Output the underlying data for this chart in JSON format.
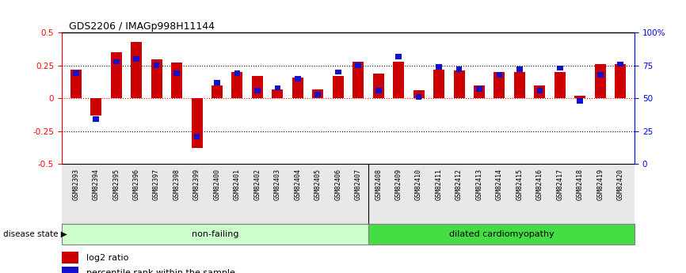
{
  "title": "GDS2206 / IMAGp998H11144",
  "samples": [
    "GSM82393",
    "GSM82394",
    "GSM82395",
    "GSM82396",
    "GSM82397",
    "GSM82398",
    "GSM82399",
    "GSM82400",
    "GSM82401",
    "GSM82402",
    "GSM82403",
    "GSM82404",
    "GSM82405",
    "GSM82406",
    "GSM82407",
    "GSM82408",
    "GSM82409",
    "GSM82410",
    "GSM82411",
    "GSM82412",
    "GSM82413",
    "GSM82414",
    "GSM82415",
    "GSM82416",
    "GSM82417",
    "GSM82418",
    "GSM82419",
    "GSM82420"
  ],
  "log2_ratio": [
    0.22,
    -0.13,
    0.35,
    0.43,
    0.3,
    0.27,
    -0.38,
    0.1,
    0.2,
    0.17,
    0.07,
    0.16,
    0.07,
    0.17,
    0.28,
    0.19,
    0.28,
    0.06,
    0.22,
    0.21,
    0.1,
    0.2,
    0.2,
    0.1,
    0.2,
    0.02,
    0.26,
    0.26
  ],
  "percentile": [
    69,
    34,
    78,
    80,
    75,
    69,
    21,
    62,
    69,
    56,
    58,
    65,
    53,
    70,
    75,
    56,
    82,
    51,
    74,
    72,
    57,
    68,
    72,
    56,
    73,
    48,
    68,
    76
  ],
  "nonfailing_count": 15,
  "ylim": [
    -0.5,
    0.5
  ],
  "right_ylim": [
    0,
    100
  ],
  "bar_color_red": "#cc0000",
  "bar_color_blue": "#1111cc",
  "bg_color_nonfailing": "#ccffcc",
  "bg_color_dilated": "#44dd44",
  "label_nonfailing": "non-failing",
  "label_dilated": "dilated cardiomyopathy",
  "disease_state_label": "disease state",
  "legend_log2": "log2 ratio",
  "legend_pct": "percentile rank within the sample",
  "left_yticks": [
    -0.5,
    -0.25,
    0,
    0.25,
    0.5
  ],
  "left_yticklabels": [
    "-0.5",
    "-0.25",
    "0",
    "0.25",
    "0.5"
  ],
  "right_yticks": [
    0,
    25,
    50,
    75,
    100
  ],
  "right_yticklabels": [
    "0",
    "25",
    "50",
    "75",
    "100%"
  ]
}
